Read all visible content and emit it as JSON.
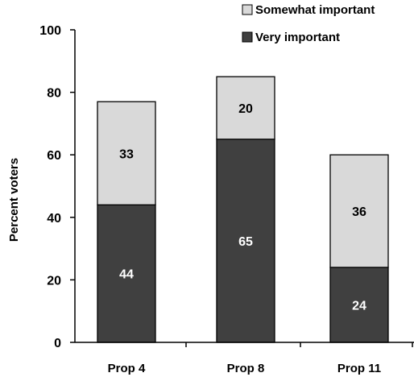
{
  "chart_data": {
    "type": "bar",
    "stacked": true,
    "categories": [
      "Prop 4",
      "Prop 8",
      "Prop 11"
    ],
    "series": [
      {
        "name": "Very important",
        "values": [
          44,
          65,
          24
        ],
        "color": "#404040",
        "label_color": "#ffffff"
      },
      {
        "name": "Somewhat important",
        "values": [
          33,
          20,
          36
        ],
        "color": "#d9d9d9",
        "label_color": "#000000"
      }
    ],
    "ylabel": "Percent voters",
    "xlabel": "",
    "ylim": [
      0,
      100
    ],
    "yticks": [
      0,
      20,
      40,
      60,
      80,
      100
    ],
    "grid": false,
    "legend_position": "top-right",
    "legend_order": [
      "Somewhat important",
      "Very important"
    ]
  }
}
